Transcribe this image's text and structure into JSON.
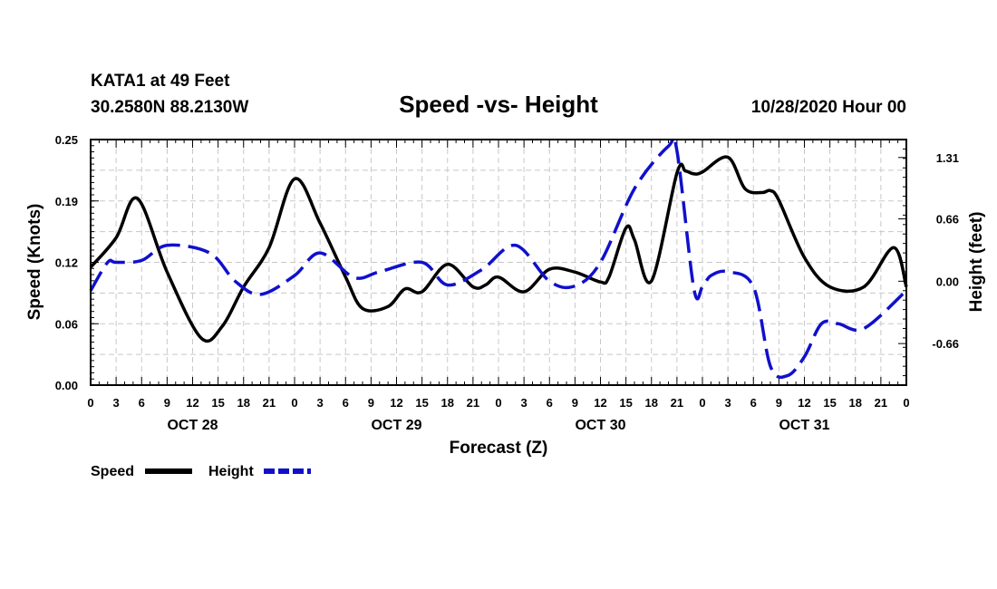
{
  "header": {
    "station": "KATA1 at 49 Feet",
    "coords": "30.2580N 88.2130W",
    "title": "Speed -vs- Height",
    "datetime": "10/28/2020 Hour 00"
  },
  "colors": {
    "speed": "#000000",
    "height": "#1010cc",
    "grid": "#c8c8c8"
  },
  "chart_data": {
    "type": "line",
    "title": "Speed -vs- Height",
    "xlabel": "Forecast (Z)",
    "ylabel": "Speed (Knots)",
    "y2label": "Height (feet)",
    "xlim": [
      0,
      96
    ],
    "ylim": [
      0,
      0.25
    ],
    "y2lim": [
      -1.1,
      1.5
    ],
    "y_ticks": [
      "0.00",
      "0.06",
      "0.12",
      "0.19",
      "0.25"
    ],
    "y_tick_values": [
      0,
      0.0625,
      0.125,
      0.1875,
      0.25
    ],
    "y2_ticks": [
      "-0.66",
      "0.00",
      "0.66",
      "1.31"
    ],
    "y2_tick_values": [
      -0.66,
      0,
      0.66,
      1.31
    ],
    "x_ticks": [
      "0",
      "3",
      "6",
      "9",
      "12",
      "15",
      "18",
      "21",
      "0",
      "3",
      "6",
      "9",
      "12",
      "15",
      "18",
      "21",
      "0",
      "3",
      "6",
      "9",
      "12",
      "15",
      "18",
      "21",
      "0",
      "3",
      "6",
      "9",
      "12",
      "15",
      "18",
      "21",
      "0"
    ],
    "day_labels": [
      {
        "label": "OCT 28",
        "hour": 12
      },
      {
        "label": "OCT 29",
        "hour": 36
      },
      {
        "label": "OCT 30",
        "hour": 60
      },
      {
        "label": "OCT 31",
        "hour": 84
      }
    ],
    "grid": true,
    "legend": "bottom-left",
    "series": [
      {
        "name": "Speed",
        "axis": "left",
        "style": "solid",
        "x": [
          0,
          3,
          5.5,
          9,
          13,
          15.5,
          18,
          21,
          24,
          27,
          30,
          32,
          35,
          37,
          39,
          42,
          45,
          46.5,
          48,
          51,
          54,
          57,
          60,
          61,
          63,
          64,
          66,
          69,
          70,
          71,
          72,
          75,
          77,
          79,
          80,
          81,
          84,
          87,
          91,
          94.5,
          96
        ],
        "y": [
          0.12,
          0.15,
          0.19,
          0.115,
          0.048,
          0.06,
          0.1,
          0.14,
          0.21,
          0.165,
          0.11,
          0.078,
          0.08,
          0.098,
          0.095,
          0.123,
          0.1,
          0.102,
          0.11,
          0.095,
          0.118,
          0.115,
          0.105,
          0.11,
          0.16,
          0.148,
          0.106,
          0.216,
          0.218,
          0.215,
          0.217,
          0.232,
          0.2,
          0.196,
          0.198,
          0.188,
          0.13,
          0.1,
          0.1,
          0.14,
          0.1
        ]
      },
      {
        "name": "Height",
        "axis": "right",
        "style": "dashed",
        "x": [
          0,
          2,
          3,
          6,
          9,
          14,
          17,
          20,
          24,
          27,
          31,
          34,
          39,
          42,
          46,
          50,
          54,
          57,
          60,
          64,
          68,
          69,
          71,
          72,
          73,
          75,
          78,
          80,
          82,
          84,
          86,
          88,
          91,
          96
        ],
        "y": [
          -0.1,
          0.2,
          0.2,
          0.22,
          0.38,
          0.3,
          0.0,
          -0.14,
          0.06,
          0.3,
          0.04,
          0.1,
          0.2,
          -0.04,
          0.12,
          0.38,
          0.0,
          -0.05,
          0.2,
          0.98,
          1.43,
          1.38,
          -0.08,
          -0.06,
          0.06,
          0.1,
          -0.06,
          -0.9,
          -1.0,
          -0.8,
          -0.45,
          -0.45,
          -0.5,
          -0.1
        ]
      }
    ]
  },
  "legend": {
    "speed_label": "Speed",
    "height_label": "Height"
  }
}
